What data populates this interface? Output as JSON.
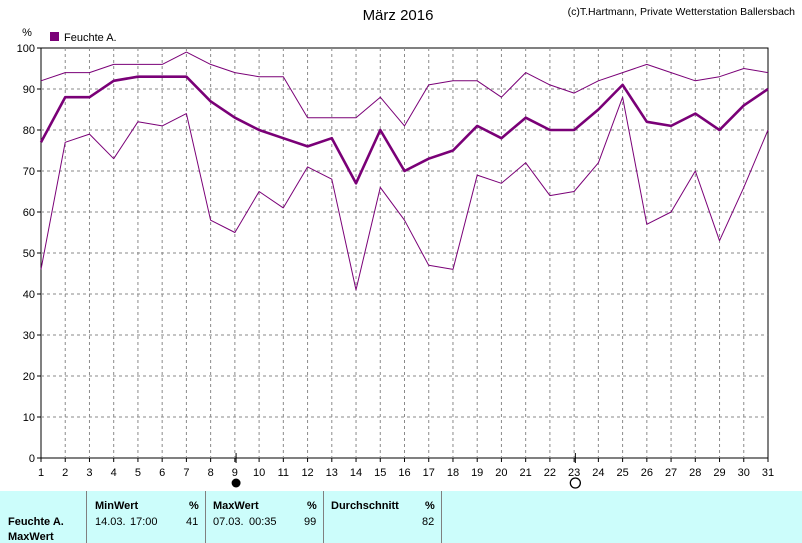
{
  "title": "März 2016",
  "credit": "(c)T.Hartmann, Private Wetterstation Ballersbach",
  "chart_data": {
    "type": "line",
    "ylabel": "%",
    "ylim": [
      0,
      100
    ],
    "yticks": [
      0,
      10,
      20,
      30,
      40,
      50,
      60,
      70,
      80,
      90,
      100
    ],
    "x": [
      1,
      2,
      3,
      4,
      5,
      6,
      7,
      8,
      9,
      10,
      11,
      12,
      13,
      14,
      15,
      16,
      17,
      18,
      19,
      20,
      21,
      22,
      23,
      24,
      25,
      26,
      27,
      28,
      29,
      30,
      31
    ],
    "grid": true,
    "legend_position": "top-left",
    "legend": "Feuchte A.",
    "series_color": "#7a0077",
    "series": [
      {
        "role": "max",
        "values": [
          92,
          94,
          94,
          96,
          96,
          96,
          99,
          96,
          94,
          93,
          93,
          83,
          83,
          83,
          88,
          81,
          91,
          92,
          92,
          88,
          94,
          91,
          89,
          92,
          94,
          96,
          94,
          92,
          93,
          95,
          94
        ]
      },
      {
        "role": "avg",
        "values": [
          77,
          88,
          88,
          92,
          93,
          93,
          93,
          87,
          83,
          80,
          78,
          76,
          78,
          67,
          80,
          70,
          73,
          75,
          81,
          78,
          83,
          80,
          80,
          85,
          91,
          82,
          81,
          84,
          80,
          86,
          90
        ]
      },
      {
        "role": "min",
        "values": [
          46,
          77,
          79,
          73,
          82,
          81,
          84,
          58,
          55,
          65,
          61,
          71,
          68,
          41,
          66,
          58,
          47,
          46,
          69,
          67,
          72,
          64,
          65,
          72,
          88,
          57,
          60,
          70,
          53,
          66,
          80
        ]
      }
    ],
    "moon_markers": [
      {
        "day": 9,
        "phase": "full-moon"
      },
      {
        "day": 23,
        "phase": "new-moon"
      }
    ]
  },
  "stats": {
    "row_label": "Feuchte A.",
    "row_sublabel": "MaxWert",
    "min_header": "MinWert",
    "max_header": "MaxWert",
    "avg_header": "Durchschnitt",
    "unit": "%",
    "min_date": "14.03.",
    "min_time": "17:00",
    "min_value": "41",
    "max_date": "07.03.",
    "max_time": "00:35",
    "max_value": "99",
    "avg_value": "82"
  }
}
